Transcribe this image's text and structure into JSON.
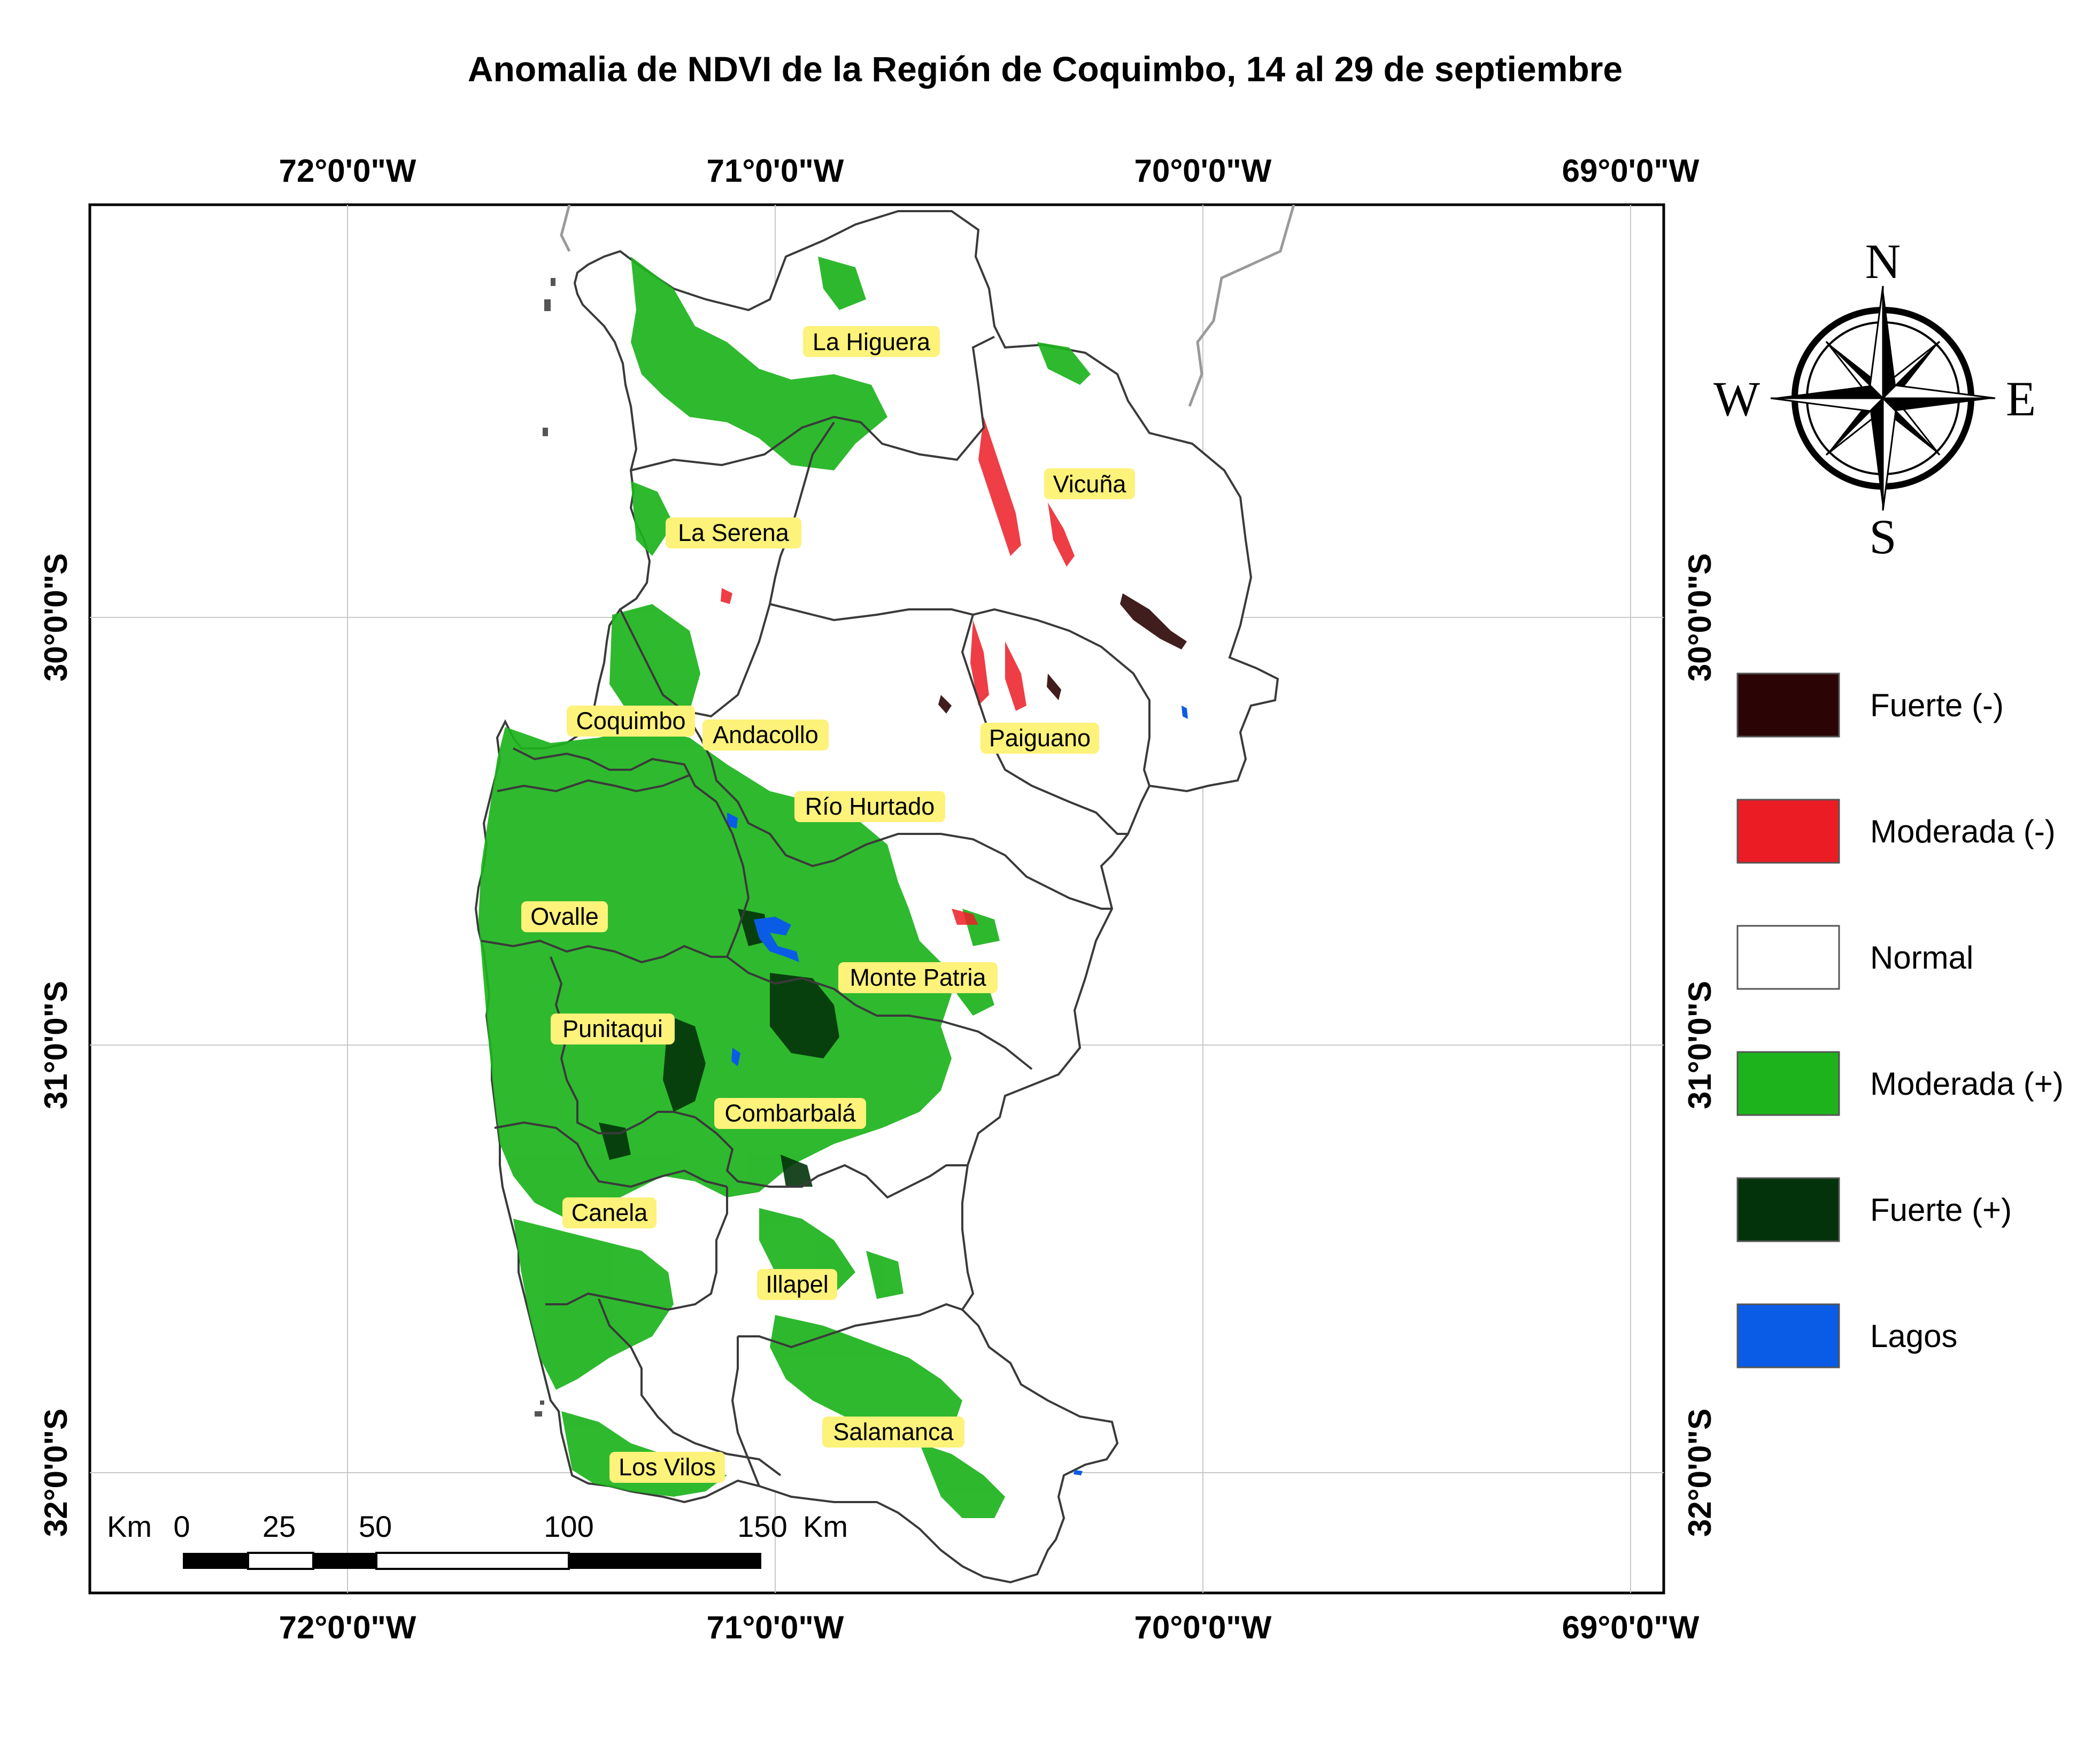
{
  "title": "Anomalia de NDVI de la Región de Coquimbo, 14 al 29 de septiembre",
  "lon_labels": [
    "72°0'0\"W",
    "71°0'0\"W",
    "70°0'0\"W",
    "69°0'0\"W"
  ],
  "lat_labels": [
    "30°0'0\"S",
    "31°0'0\"S",
    "32°0'0\"S"
  ],
  "comunas": [
    "La Higuera",
    "Vicuña",
    "La Serena",
    "Coquimbo",
    "Andacollo",
    "Paiguano",
    "Río Hurtado",
    "Ovalle",
    "Monte Patria",
    "Punitaqui",
    "Combarbalá",
    "Canela",
    "Illapel",
    "Salamanca",
    "Los Vilos"
  ],
  "legend": [
    {
      "label": "Fuerte (-)",
      "color": "#2b0505"
    },
    {
      "label": "Moderada (-)",
      "color": "#ec1c24"
    },
    {
      "label": "Normal",
      "color": "#ffffff"
    },
    {
      "label": "Moderada (+)",
      "color": "#1db31d"
    },
    {
      "label": "Fuerte (+)",
      "color": "#03330a"
    },
    {
      "label": "Lagos",
      "color": "#0a5ce6"
    }
  ],
  "scale_bar": {
    "unit_left": "Km",
    "ticks": [
      "0",
      "25",
      "50",
      "100",
      "150"
    ],
    "unit_right": "Km"
  },
  "compass": {
    "n": "N",
    "s": "S",
    "e": "E",
    "w": "W"
  },
  "colors": {
    "region_outline": "#3a3a3a",
    "border_outline": "#9a9a9a",
    "graticule": "#c8c8c8",
    "label_bg": "#fdf27a"
  }
}
